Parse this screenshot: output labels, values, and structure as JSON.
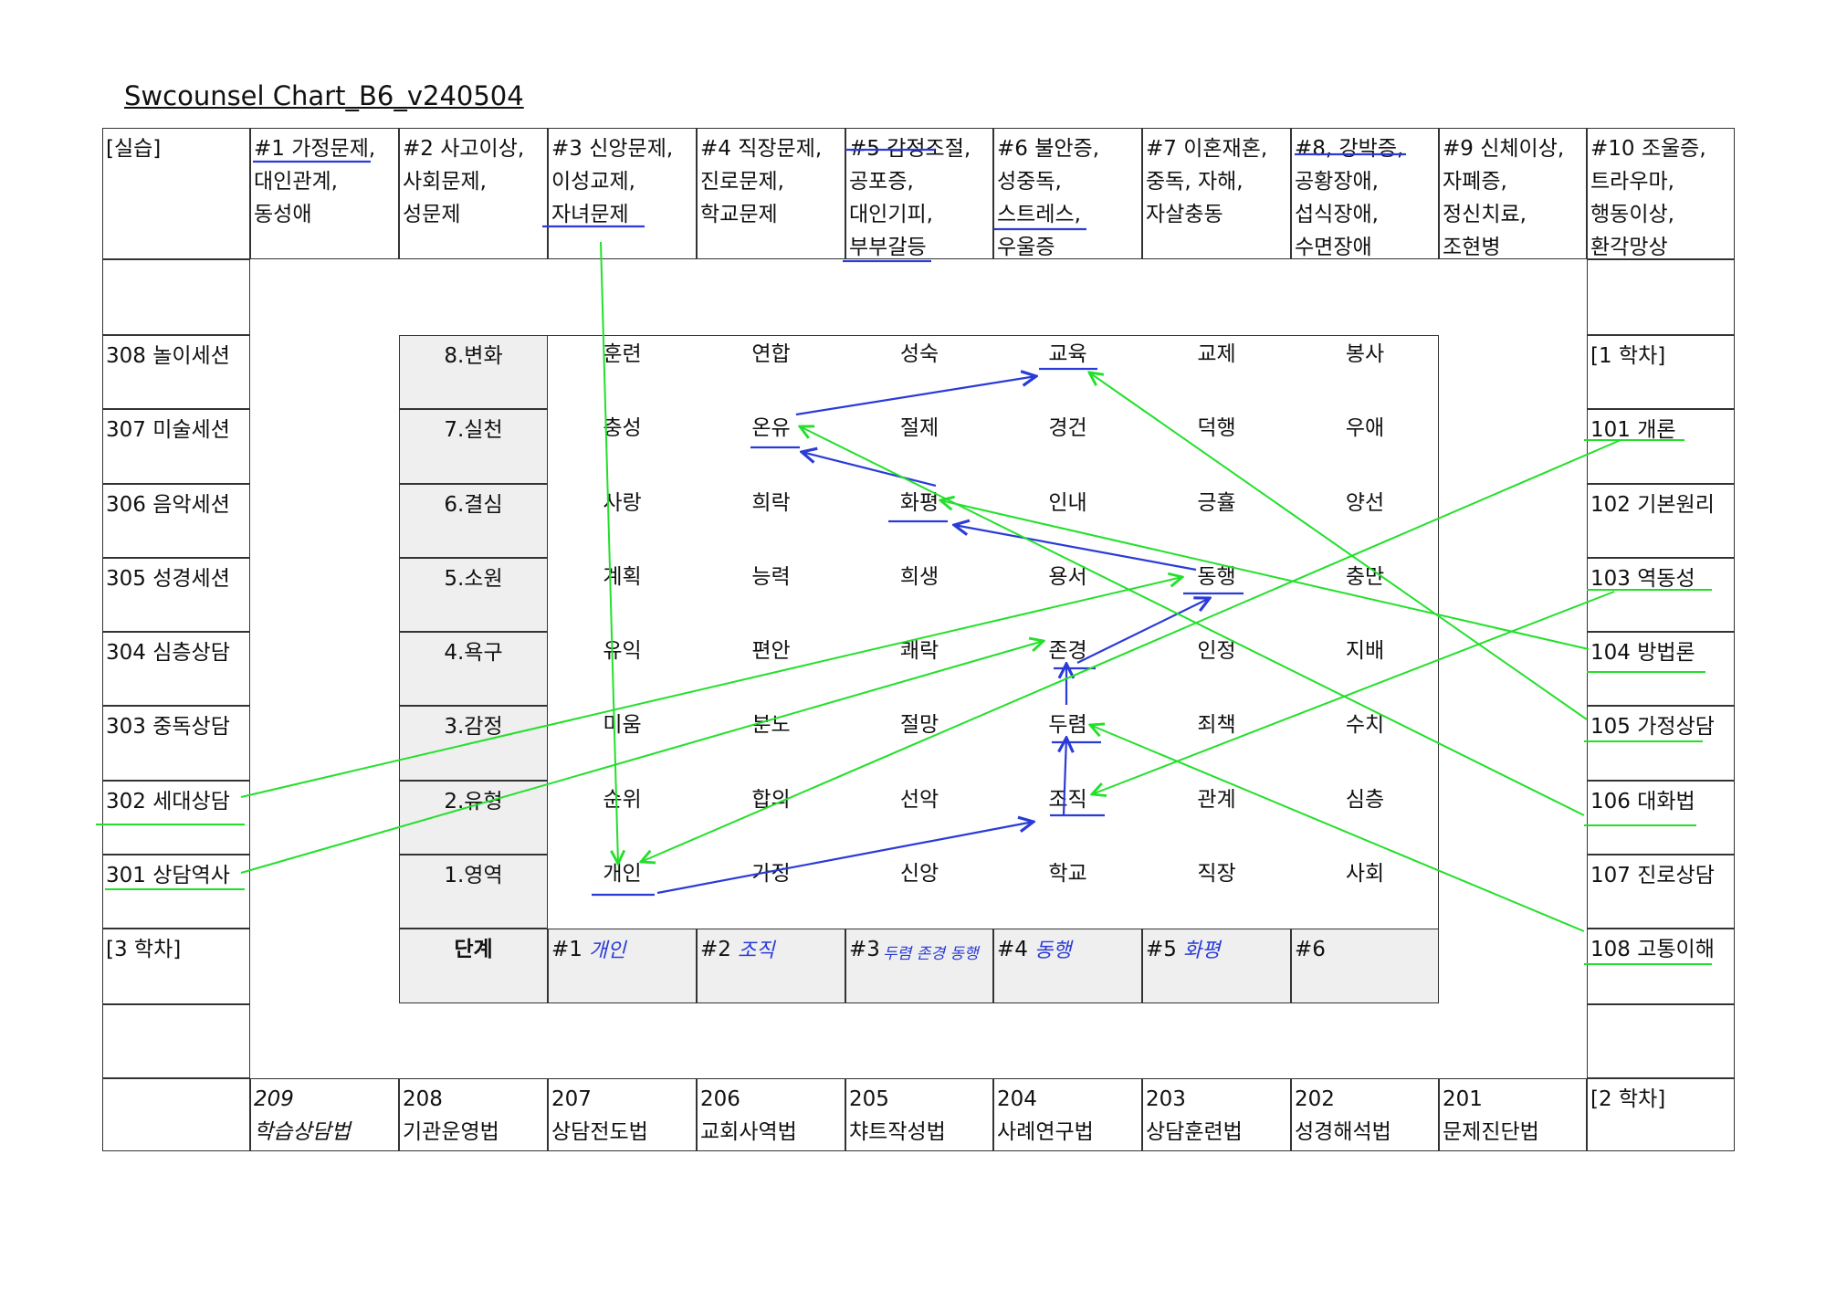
{
  "title": "Swcounsel Chart_B6_v240504",
  "top_row": [
    "[실습]",
    "#1 가정문제,\n대인관계,\n동성애",
    "#2 사고이상,\n사회문제,\n성문제",
    "#3 신앙문제,\n이성교제,\n자녀문제",
    "#4 직장문제,\n진로문제,\n학교문제",
    "#5 감정조절,\n공포증,\n대인기피,\n부부갈등",
    "#6 불안증,\n성중독,\n스트레스,\n우울증",
    "#7 이혼재혼,\n중독, 자해,\n자살충동",
    "#8, 강박증,\n공황장애,\n섭식장애,\n수면장애",
    "#9 신체이상,\n자폐증,\n정신치료,\n조현병",
    "#10 조울증,\n트라우마,\n행동이상,\n환각망상"
  ],
  "left_col": [
    "308 놀이세션",
    "307 미술세션",
    "306 음악세션",
    "305 성경세션",
    "304 심층상담",
    "303 중독상담",
    "302 세대상담",
    "301 상담역사",
    "[3 학차]"
  ],
  "right_col": [
    "[1 학차]",
    "101 개론",
    "102 기본원리",
    "103 역동성",
    "104 방법론",
    "105 가정상담",
    "106 대화법",
    "107 진로상담",
    "108 고통이해"
  ],
  "bottom_row": [
    "209\n학습상담법",
    "208\n기관운영법",
    "207\n상담전도법",
    "206\n교회사역법",
    "205\n챠트작성법",
    "204\n사례연구법",
    "203\n상담훈련법",
    "202\n성경해석법",
    "201\n문제진단법",
    "[2 학차]"
  ],
  "stages": [
    "8.변화",
    "7.실천",
    "6.결심",
    "5.소원",
    "4.욕구",
    "3.감정",
    "2.유형",
    "1.영역"
  ],
  "stage_header": "단계",
  "matrix": [
    [
      "훈련",
      "연합",
      "성숙",
      "교육",
      "교제",
      "봉사"
    ],
    [
      "충성",
      "온유",
      "절제",
      "경건",
      "덕행",
      "우애"
    ],
    [
      "사랑",
      "희락",
      "화평",
      "인내",
      "긍휼",
      "양선"
    ],
    [
      "계획",
      "능력",
      "희생",
      "용서",
      "동행",
      "충만"
    ],
    [
      "유익",
      "편안",
      "쾌락",
      "존경",
      "인정",
      "지배"
    ],
    [
      "미움",
      "분노",
      "절망",
      "두렴",
      "죄책",
      "수치"
    ],
    [
      "순위",
      "합의",
      "선악",
      "조직",
      "관계",
      "심층"
    ],
    [
      "개인",
      "가정",
      "신앙",
      "학교",
      "직장",
      "사회"
    ]
  ],
  "step_labels": [
    "#1",
    "#2",
    "#3",
    "#4",
    "#5",
    "#6"
  ],
  "step_notes": [
    "개인",
    "조직",
    "두렴 존경 동행",
    "동행",
    "화평",
    ""
  ],
  "colors": {
    "blue_ink": "#2a3bd6",
    "green_ink": "#22e02a",
    "grid": "#333333",
    "shade": "#efefef"
  }
}
